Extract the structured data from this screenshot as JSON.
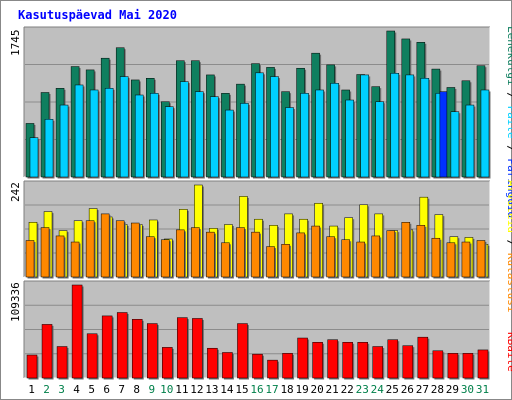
{
  "title": "Kasutuspäevad Mai 2020",
  "colors": {
    "hits": "#0f7f5f",
    "files": "#00d0ff",
    "pages": "#0030ff",
    "visits": "#ffff00",
    "sites": "#ff8800",
    "kbytes": "#ff0000",
    "panel": "#bfbfbf",
    "weekday_text": "#000000",
    "weekend_text": "#00804a"
  },
  "legend": {
    "top_right": [
      "Päringuid",
      "Faile",
      "Lehekülgi"
    ],
    "middle_right": [
      "Külastusi",
      "Arvuteid"
    ],
    "bottom_right": [
      "KBaite"
    ],
    "separator": " / "
  },
  "chart_data": {
    "type": "bar",
    "categories": [
      "1",
      "2",
      "3",
      "4",
      "5",
      "6",
      "7",
      "8",
      "9",
      "10",
      "11",
      "12",
      "13",
      "14",
      "15",
      "16",
      "17",
      "18",
      "19",
      "20",
      "21",
      "22",
      "23",
      "24",
      "25",
      "26",
      "27",
      "28",
      "29",
      "30",
      "31"
    ],
    "weekend_days": [
      "2",
      "3",
      "9",
      "10",
      "16",
      "17",
      "23",
      "24",
      "30",
      "31"
    ],
    "panels": [
      {
        "name": "top",
        "ylabel": "1745",
        "ylim": [
          0,
          1745
        ],
        "series": [
          {
            "name": "Päringuid",
            "values": [
              640,
              1010,
              1060,
              1320,
              1280,
              1420,
              1545,
              1160,
              1180,
              900,
              1390,
              1390,
              1220,
              1000,
              1110,
              1355,
              1310,
              1020,
              1300,
              1480,
              1340,
              1040,
              1225,
              1080,
              1745,
              1650,
              1610,
              1290,
              1070,
              1150,
              1330
            ]
          },
          {
            "name": "Faile",
            "values": [
              470,
              690,
              860,
              1100,
              1040,
              1060,
              1200,
              980,
              1000,
              840,
              1140,
              1020,
              960,
              800,
              880,
              1245,
              1200,
              830,
              1000,
              1040,
              1120,
              920,
              1220,
              900,
              1240,
              1220,
              1180,
              1000,
              780,
              860,
              1040
            ]
          },
          {
            "name": "Lehekülgi",
            "values": [
              0,
              0,
              0,
              0,
              0,
              0,
              0,
              0,
              0,
              0,
              0,
              0,
              0,
              0,
              0,
              0,
              0,
              0,
              0,
              0,
              0,
              0,
              0,
              0,
              0,
              0,
              0,
              1020,
              0,
              0,
              0
            ]
          }
        ]
      },
      {
        "name": "middle",
        "ylabel": "242",
        "ylim": [
          0,
          242
        ],
        "series": [
          {
            "name": "Külastusi",
            "values": [
              144,
              172,
              122,
              148,
              180,
              158,
              138,
              138,
              150,
              100,
              178,
              242,
              128,
              138,
              212,
              152,
              136,
              166,
              152,
              194,
              134,
              156,
              190,
              166,
              122,
              124,
              210,
              164,
              106,
              104,
              86
            ]
          },
          {
            "name": "Arvuteid",
            "values": [
              96,
              130,
              108,
              92,
              148,
              166,
              148,
              142,
              106,
              98,
              124,
              130,
              118,
              90,
              130,
              118,
              80,
              86,
              116,
              134,
              106,
              98,
              92,
              108,
              122,
              144,
              136,
              102,
              90,
              92,
              96
            ]
          }
        ]
      },
      {
        "name": "bottom",
        "ylabel": "109336",
        "ylim": [
          0,
          109336
        ],
        "series": [
          {
            "name": "KBaite",
            "values": [
              27000,
              63000,
              37000,
              109336,
              52000,
              73000,
              77000,
              69000,
              64000,
              36000,
              71000,
              70000,
              35000,
              30000,
              64000,
              28000,
              21000,
              29000,
              47000,
              42000,
              45000,
              42000,
              42000,
              37000,
              45000,
              38000,
              48000,
              32000,
              29000,
              29000,
              33000
            ]
          }
        ]
      }
    ]
  }
}
